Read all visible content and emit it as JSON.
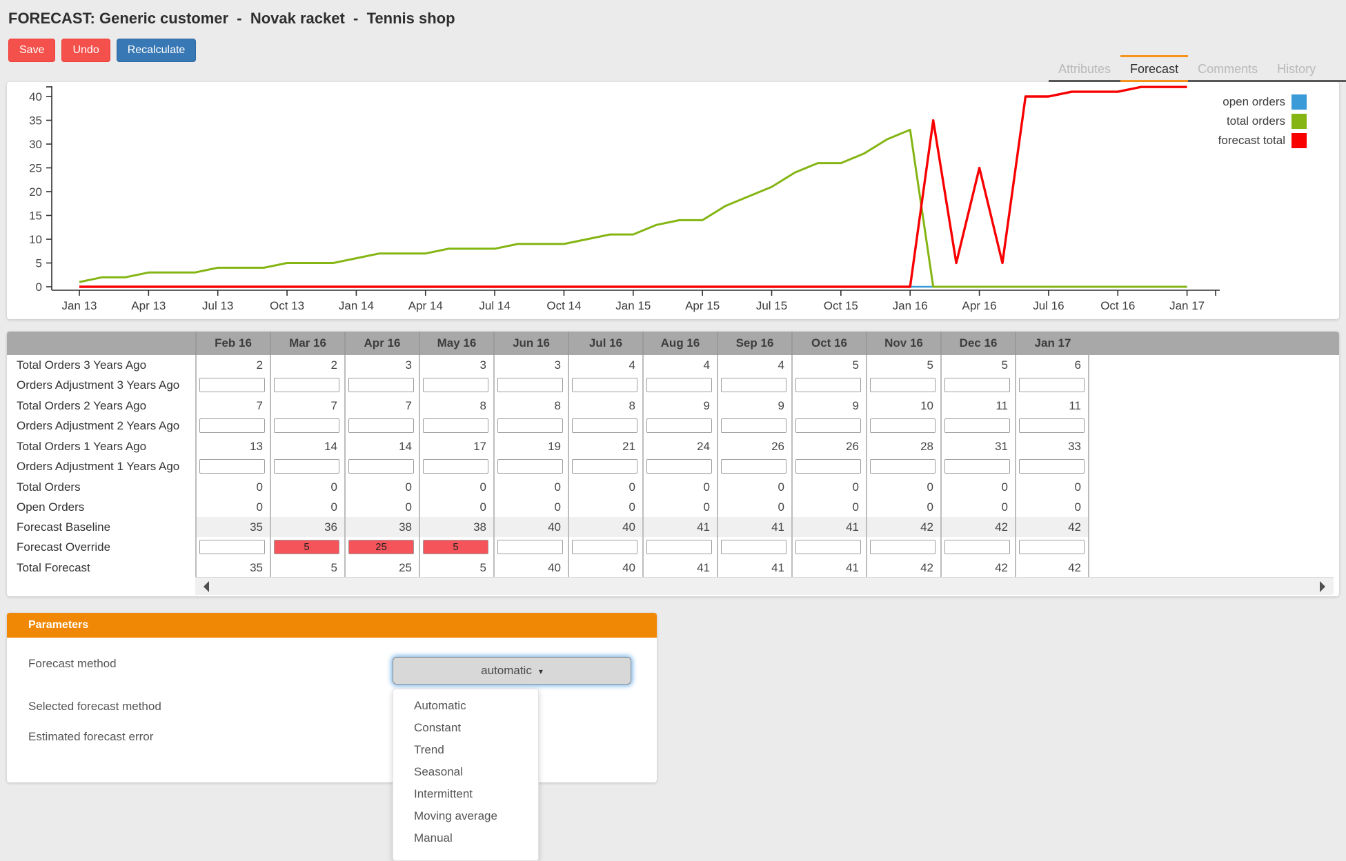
{
  "page": {
    "title": "FORECAST: Generic customer  -  Novak racket  -  Tennis shop"
  },
  "toolbar": {
    "save_label": "Save",
    "undo_label": "Undo",
    "recalculate_label": "Recalculate"
  },
  "tabs": {
    "items": [
      {
        "label": "Attributes",
        "active": false
      },
      {
        "label": "Forecast",
        "active": true
      },
      {
        "label": "Comments",
        "active": false
      },
      {
        "label": "History",
        "active": false
      }
    ]
  },
  "chart_data": {
    "type": "line",
    "title": "",
    "xlabel": "",
    "ylabel": "",
    "ylim": [
      0,
      40
    ],
    "y_ticks": [
      0,
      5,
      10,
      15,
      20,
      25,
      30,
      35,
      40
    ],
    "x_tick_labels": [
      "Jan 13",
      "Apr 13",
      "Jul 13",
      "Oct 13",
      "Jan 14",
      "Apr 14",
      "Jul 14",
      "Oct 14",
      "Jan 15",
      "Apr 15",
      "Jul 15",
      "Oct 15",
      "Jan 16",
      "Apr 16",
      "Jul 16",
      "Oct 16",
      "Jan 17"
    ],
    "grid": false,
    "legend_position": "top-right",
    "series": [
      {
        "name": "open orders",
        "color": "#3b9bd9",
        "values": [
          0,
          0,
          0,
          0,
          0,
          0,
          0,
          0,
          0,
          0,
          0,
          0,
          0,
          0,
          0,
          0,
          0,
          0,
          0,
          0,
          0,
          0,
          0,
          0,
          0,
          0,
          0,
          0,
          0,
          0,
          0,
          0,
          0,
          0,
          0,
          0,
          0,
          0,
          0,
          0,
          0,
          0,
          0,
          0,
          0,
          0,
          0,
          0,
          0
        ]
      },
      {
        "name": "total orders",
        "color": "#84b513",
        "values": [
          1,
          2,
          2,
          3,
          3,
          3,
          4,
          4,
          4,
          5,
          5,
          5,
          6,
          7,
          7,
          7,
          8,
          8,
          8,
          9,
          9,
          9,
          10,
          11,
          11,
          13,
          14,
          14,
          17,
          19,
          21,
          24,
          26,
          26,
          28,
          31,
          33,
          0,
          0,
          0,
          0,
          0,
          0,
          0,
          0,
          0,
          0,
          0,
          0
        ]
      },
      {
        "name": "forecast total",
        "color": "#f80000",
        "values": [
          0,
          0,
          0,
          0,
          0,
          0,
          0,
          0,
          0,
          0,
          0,
          0,
          0,
          0,
          0,
          0,
          0,
          0,
          0,
          0,
          0,
          0,
          0,
          0,
          0,
          0,
          0,
          0,
          0,
          0,
          0,
          0,
          0,
          0,
          0,
          0,
          0,
          35,
          5,
          25,
          5,
          40,
          40,
          41,
          41,
          41,
          42,
          42,
          42
        ]
      }
    ]
  },
  "table": {
    "columns": [
      "Feb 16",
      "Mar 16",
      "Apr 16",
      "May 16",
      "Jun 16",
      "Jul 16",
      "Aug 16",
      "Sep 16",
      "Oct 16",
      "Nov 16",
      "Dec 16",
      "Jan 17"
    ],
    "rows": [
      {
        "label": "Total Orders 3 Years Ago",
        "kind": "values",
        "values": [
          2,
          2,
          3,
          3,
          3,
          4,
          4,
          4,
          5,
          5,
          5,
          6
        ]
      },
      {
        "label": "Orders Adjustment 3 Years Ago",
        "kind": "inputs",
        "values": [
          "",
          "",
          "",
          "",
          "",
          "",
          "",
          "",
          "",
          "",
          "",
          ""
        ]
      },
      {
        "label": "Total Orders 2 Years Ago",
        "kind": "values",
        "values": [
          7,
          7,
          7,
          8,
          8,
          8,
          9,
          9,
          9,
          10,
          11,
          11
        ]
      },
      {
        "label": "Orders Adjustment 2 Years Ago",
        "kind": "inputs",
        "values": [
          "",
          "",
          "",
          "",
          "",
          "",
          "",
          "",
          "",
          "",
          "",
          ""
        ]
      },
      {
        "label": "Total Orders 1 Years Ago",
        "kind": "values",
        "values": [
          13,
          14,
          14,
          17,
          19,
          21,
          24,
          26,
          26,
          28,
          31,
          33
        ]
      },
      {
        "label": "Orders Adjustment 1 Years Ago",
        "kind": "inputs",
        "values": [
          "",
          "",
          "",
          "",
          "",
          "",
          "",
          "",
          "",
          "",
          "",
          ""
        ]
      },
      {
        "label": "Total Orders",
        "kind": "values",
        "values": [
          0,
          0,
          0,
          0,
          0,
          0,
          0,
          0,
          0,
          0,
          0,
          0
        ]
      },
      {
        "label": "Open Orders",
        "kind": "values",
        "values": [
          0,
          0,
          0,
          0,
          0,
          0,
          0,
          0,
          0,
          0,
          0,
          0
        ]
      },
      {
        "label": "Forecast Baseline",
        "kind": "values",
        "shaded": true,
        "values": [
          35,
          36,
          38,
          38,
          40,
          40,
          41,
          41,
          41,
          42,
          42,
          42
        ]
      },
      {
        "label": "Forecast Override",
        "kind": "inputs",
        "values": [
          "",
          "5",
          "25",
          "5",
          "",
          "",
          "",
          "",
          "",
          "",
          "",
          ""
        ],
        "highlight": [
          false,
          true,
          true,
          true,
          false,
          false,
          false,
          false,
          false,
          false,
          false,
          false
        ]
      },
      {
        "label": "Total Forecast",
        "kind": "values",
        "values": [
          35,
          5,
          25,
          5,
          40,
          40,
          41,
          41,
          41,
          42,
          42,
          42
        ]
      }
    ]
  },
  "parameters": {
    "title": "Parameters",
    "fields": [
      {
        "label": "Forecast method"
      },
      {
        "label": "Selected forecast method"
      },
      {
        "label": "Estimated forecast error"
      }
    ],
    "dropdown": {
      "value": "automatic",
      "caret": "▾",
      "options": [
        "Automatic",
        "Constant",
        "Trend",
        "Seasonal",
        "Intermittent",
        "Moving average",
        "Manual"
      ]
    }
  },
  "colors": {
    "accent_orange_tab": "#f7941d",
    "accent_orange_panel": "#f18805",
    "button_red": "#f4514c",
    "button_blue": "#3878b4",
    "override_cell_red": "#f6545b",
    "table_header_gray": "#a8a8a8"
  }
}
